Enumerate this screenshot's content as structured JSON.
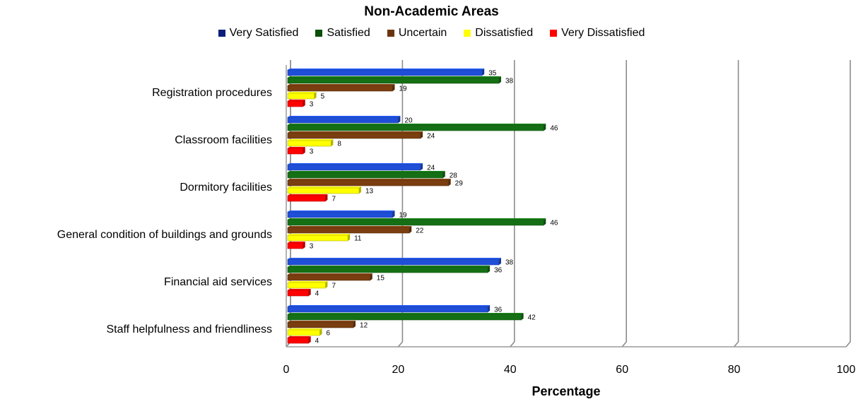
{
  "chart_data": {
    "type": "bar",
    "orientation": "horizontal",
    "title": "Non-Academic Areas",
    "xlabel": "Percentage",
    "ylabel": "",
    "xlim": [
      0,
      100
    ],
    "xticks": [
      "0",
      "20",
      "40",
      "60",
      "80",
      "100"
    ],
    "grid": true,
    "legend_position": "top",
    "categories": [
      "Registration procedures",
      "Classroom facilities",
      "Dormitory facilities",
      "General condition of buildings and grounds",
      "Financial aid services",
      "Staff helpfulness and friendliness"
    ],
    "series": [
      {
        "name": "Very Satisfied",
        "color": "#1f4fd8",
        "legend_color": "#0b1f7a",
        "values": [
          35,
          20,
          24,
          19,
          38,
          36
        ]
      },
      {
        "name": "Satisfied",
        "color": "#157015",
        "legend_color": "#0a4f0a",
        "values": [
          38,
          46,
          28,
          46,
          36,
          42
        ]
      },
      {
        "name": "Uncertain",
        "color": "#7a3e10",
        "legend_color": "#6b3410",
        "values": [
          19,
          24,
          29,
          22,
          15,
          12
        ]
      },
      {
        "name": "Dissatisfied",
        "color": "#ffff00",
        "legend_color": "#ffff00",
        "values": [
          5,
          8,
          13,
          11,
          7,
          6
        ]
      },
      {
        "name": "Very Dissatisfied",
        "color": "#ff0000",
        "legend_color": "#ff0000",
        "values": [
          3,
          3,
          7,
          3,
          4,
          4
        ]
      }
    ]
  }
}
